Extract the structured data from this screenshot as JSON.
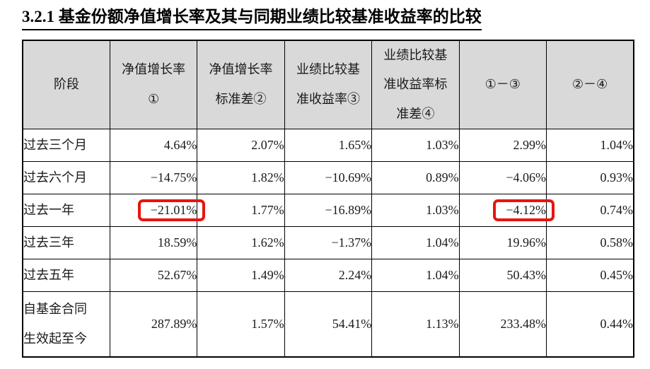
{
  "title": "3.2.1 基金份额净值增长率及其与同期业绩比较基准收益率的比较",
  "table": {
    "headers": [
      "阶段",
      "净值增长率\n①",
      "净值增长率\n标准差②",
      "业绩比较基\n准收益率③",
      "业绩比较基\n准收益率标\n准差④",
      "①－③",
      "②－④"
    ],
    "rows": [
      {
        "label": "过去三个月",
        "values": [
          "4.64%",
          "2.07%",
          "1.65%",
          "1.03%",
          "2.99%",
          "1.04%"
        ]
      },
      {
        "label": "过去六个月",
        "values": [
          "−14.75%",
          "1.82%",
          "−10.69%",
          "0.89%",
          "−4.06%",
          "0.93%"
        ]
      },
      {
        "label": "过去一年",
        "values": [
          "−21.01%",
          "1.77%",
          "−16.89%",
          "1.03%",
          "−4.12%",
          "0.74%"
        ]
      },
      {
        "label": "过去三年",
        "values": [
          "18.59%",
          "1.62%",
          "−1.37%",
          "1.04%",
          "19.96%",
          "0.58%"
        ]
      },
      {
        "label": "过去五年",
        "values": [
          "52.67%",
          "1.49%",
          "2.24%",
          "1.04%",
          "50.43%",
          "0.45%"
        ]
      },
      {
        "label": "自基金合同\n生效起至今",
        "values": [
          "287.89%",
          "1.57%",
          "54.41%",
          "1.13%",
          "233.48%",
          "0.44%"
        ]
      }
    ],
    "highlights": [
      {
        "row": 2,
        "col": 0,
        "value": "−21.01%"
      },
      {
        "row": 2,
        "col": 4,
        "value": "−4.12%"
      }
    ]
  },
  "colors": {
    "header_background": "#d9d9d9",
    "highlight_border": "#e8140e",
    "table_border": "#000000",
    "text": "#1a1a1a"
  }
}
